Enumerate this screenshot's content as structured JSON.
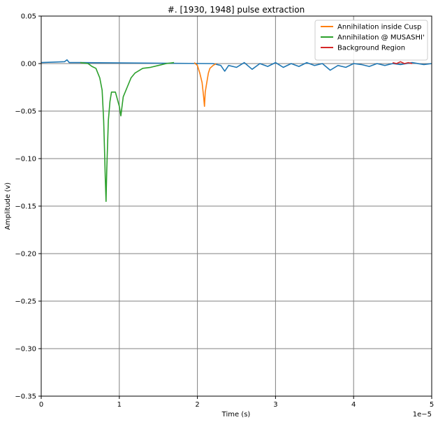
{
  "chart_data": {
    "type": "line",
    "title": "#. [1930, 1948] pulse extraction",
    "xlabel": "Time (s)",
    "ylabel": "Amplitude (v)",
    "x_offset_label": "1e−5",
    "xlim": [
      0,
      5
    ],
    "ylim": [
      -0.35,
      0.05
    ],
    "x_ticks": [
      0,
      1,
      2,
      3,
      4,
      5
    ],
    "x_tick_labels": [
      "0",
      "1",
      "2",
      "3",
      "4",
      "5"
    ],
    "y_ticks": [
      0.05,
      0.0,
      -0.05,
      -0.1,
      -0.15,
      -0.2,
      -0.25,
      -0.3,
      -0.35
    ],
    "y_tick_labels": [
      "0.05",
      "0.00",
      "−0.05",
      "−0.10",
      "−0.15",
      "−0.20",
      "−0.25",
      "−0.30",
      "−0.35"
    ],
    "grid": true,
    "legend_position": "top-right",
    "series": [
      {
        "name": "",
        "color": "#1f77b4",
        "in_legend": false,
        "points": [
          [
            0.0,
            0.001
          ],
          [
            0.3,
            0.002
          ],
          [
            0.33,
            0.004
          ],
          [
            0.36,
            0.001
          ],
          [
            0.5,
            0.001
          ],
          [
            2.2,
            0.0
          ],
          [
            2.3,
            -0.002
          ],
          [
            2.35,
            -0.008
          ],
          [
            2.4,
            -0.002
          ],
          [
            2.5,
            -0.004
          ],
          [
            2.6,
            0.001
          ],
          [
            2.7,
            -0.006
          ],
          [
            2.8,
            0.0
          ],
          [
            2.9,
            -0.003
          ],
          [
            3.0,
            0.001
          ],
          [
            3.1,
            -0.004
          ],
          [
            3.2,
            0.0
          ],
          [
            3.3,
            -0.003
          ],
          [
            3.4,
            0.001
          ],
          [
            3.5,
            -0.002
          ],
          [
            3.6,
            0.0
          ],
          [
            3.7,
            -0.007
          ],
          [
            3.8,
            -0.002
          ],
          [
            3.9,
            -0.004
          ],
          [
            4.0,
            0.0
          ],
          [
            4.1,
            -0.001
          ],
          [
            4.2,
            -0.003
          ],
          [
            4.3,
            0.0
          ],
          [
            4.4,
            -0.002
          ],
          [
            4.5,
            0.0
          ],
          [
            4.6,
            -0.001
          ],
          [
            4.75,
            0.001
          ],
          [
            4.9,
            -0.001
          ],
          [
            5.0,
            0.0
          ]
        ]
      },
      {
        "name": "Annihilation inside Cusp",
        "color": "#ff7f0e",
        "in_legend": true,
        "points": [
          [
            1.96,
            0.001
          ],
          [
            2.0,
            -0.002
          ],
          [
            2.03,
            -0.01
          ],
          [
            2.06,
            -0.02
          ],
          [
            2.08,
            -0.035
          ],
          [
            2.09,
            -0.045
          ],
          [
            2.1,
            -0.03
          ],
          [
            2.12,
            -0.02
          ],
          [
            2.14,
            -0.01
          ],
          [
            2.16,
            -0.005
          ],
          [
            2.2,
            -0.002
          ],
          [
            2.24,
            0.0
          ]
        ]
      },
      {
        "name": "Annihilation @ MUSASHI'",
        "color": "#2ca02c",
        "in_legend": true,
        "points": [
          [
            0.5,
            0.001
          ],
          [
            0.6,
            0.0
          ],
          [
            0.65,
            -0.003
          ],
          [
            0.7,
            -0.005
          ],
          [
            0.75,
            -0.015
          ],
          [
            0.78,
            -0.028
          ],
          [
            0.8,
            -0.06
          ],
          [
            0.81,
            -0.09
          ],
          [
            0.82,
            -0.12
          ],
          [
            0.83,
            -0.145
          ],
          [
            0.84,
            -0.11
          ],
          [
            0.86,
            -0.06
          ],
          [
            0.88,
            -0.04
          ],
          [
            0.9,
            -0.03
          ],
          [
            0.95,
            -0.03
          ],
          [
            1.0,
            -0.045
          ],
          [
            1.02,
            -0.055
          ],
          [
            1.05,
            -0.035
          ],
          [
            1.1,
            -0.025
          ],
          [
            1.15,
            -0.015
          ],
          [
            1.2,
            -0.01
          ],
          [
            1.3,
            -0.005
          ],
          [
            1.4,
            -0.004
          ],
          [
            1.5,
            -0.002
          ],
          [
            1.6,
            0.0
          ],
          [
            1.7,
            0.001
          ]
        ]
      },
      {
        "name": "Background Region",
        "color": "#d62728",
        "in_legend": true,
        "points": [
          [
            4.5,
            0.001
          ],
          [
            4.55,
            0.0
          ],
          [
            4.6,
            0.002
          ],
          [
            4.65,
            0.0
          ],
          [
            4.7,
            0.001
          ],
          [
            4.75,
            0.0
          ]
        ]
      }
    ]
  }
}
